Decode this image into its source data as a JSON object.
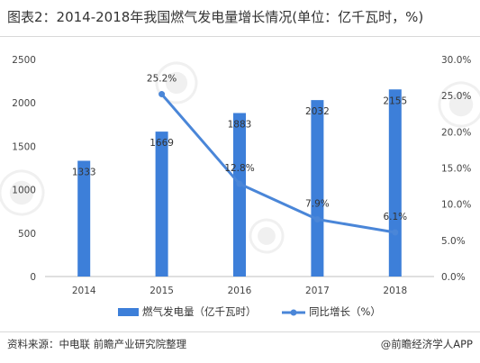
{
  "page": {
    "title": "图表2：2014-2018年我国燃气发电量增长情况(单位：亿千瓦时，%)",
    "source": "资料来源：中电联 前瞻产业研究院整理",
    "brand": "@前瞻经济学人APP",
    "watermark": "前瞻产业研究院"
  },
  "colors": {
    "bar": "#3d7fd9",
    "line": "#4a86d8",
    "axis": "#bfbfbf"
  },
  "chart_data": {
    "type": "bar",
    "categories": [
      "2014",
      "2015",
      "2016",
      "2017",
      "2018"
    ],
    "series": [
      {
        "name": "燃气发电量（亿千瓦时）",
        "type": "bar",
        "axis": "left",
        "values": [
          1333,
          1669,
          1883,
          2032,
          2155
        ],
        "labels": [
          "1333",
          "1669",
          "1883",
          "2032",
          "2155"
        ]
      },
      {
        "name": "同比增长（%）",
        "type": "line",
        "axis": "right",
        "values": [
          null,
          25.2,
          12.8,
          7.9,
          6.1
        ],
        "labels": [
          "",
          "25.2%",
          "12.8%",
          "7.9%",
          "6.1%"
        ]
      }
    ],
    "y_left": {
      "lim": [
        0,
        2500
      ],
      "ticks": [
        "0",
        "500",
        "1000",
        "1500",
        "2000",
        "2500"
      ]
    },
    "y_right": {
      "lim": [
        0,
        30
      ],
      "ticks": [
        "0.0%",
        "5.0%",
        "10.0%",
        "15.0%",
        "20.0%",
        "25.0%",
        "30.0%"
      ]
    },
    "grid": false,
    "legend_position": "bottom"
  }
}
